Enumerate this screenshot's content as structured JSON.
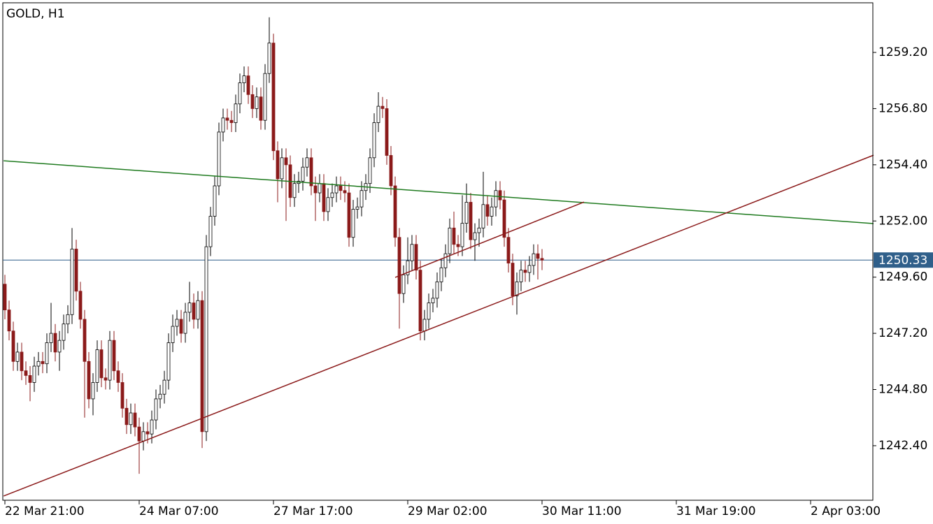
{
  "chart_data": {
    "type": "candlestick",
    "title": "GOLD, H1",
    "open": [
      1249.3,
      1248.2,
      1247.3,
      1246.0,
      1246.4,
      1245.6,
      1245.4,
      1245.1,
      1245.8,
      1246.0,
      1245.9,
      1246.8,
      1247.2,
      1246.4,
      1246.9,
      1247.6,
      1248.0,
      1250.8,
      1249.0,
      1247.8,
      1246.0,
      1244.4,
      1245.1,
      1246.5,
      1245.3,
      1245.2,
      1246.9,
      1245.6,
      1245.1,
      1244.0,
      1243.3,
      1243.8,
      1243.2,
      1242.6,
      1243.0,
      1242.9,
      1243.5,
      1244.4,
      1244.6,
      1245.2,
      1246.8,
      1247.5,
      1247.8,
      1247.2,
      1248.1,
      1248.5,
      1247.8,
      1248.6,
      1243.0,
      1250.9,
      1252.2,
      1253.5,
      1255.8,
      1256.4,
      1256.3,
      1256.2,
      1257.0,
      1257.9,
      1258.2,
      1257.4,
      1256.8,
      1257.3,
      1256.3,
      1258.3,
      1259.6,
      1255.0,
      1253.8,
      1254.7,
      1254.4,
      1253.0,
      1253.6,
      1253.7,
      1254.3,
      1254.7,
      1253.5,
      1253.2,
      1253.6,
      1252.4,
      1253.0,
      1253.2,
      1253.5,
      1253.3,
      1253.2,
      1251.3,
      1252.5,
      1252.6,
      1253.3,
      1253.6,
      1254.7,
      1256.2,
      1256.9,
      1256.8,
      1254.8,
      1253.5,
      1251.3,
      1248.9,
      1249.7,
      1250.3,
      1251.0,
      1249.9,
      1247.3,
      1247.8,
      1248.5,
      1248.7,
      1249.4,
      1250.0,
      1250.6,
      1251.7,
      1251.0,
      1250.9,
      1251.9,
      1252.8,
      1251.2,
      1251.5,
      1251.7,
      1252.7,
      1252.2,
      1252.6,
      1253.3,
      1252.9,
      1251.3,
      1250.2,
      1248.8,
      1249.4,
      1249.9,
      1249.8,
      1250.1,
      1250.6,
      1250.4
    ],
    "high": [
      1249.7,
      1248.6,
      1247.7,
      1246.8,
      1246.8,
      1246.0,
      1245.8,
      1246.2,
      1246.4,
      1246.4,
      1247.2,
      1248.5,
      1247.6,
      1247.3,
      1248.0,
      1248.4,
      1251.7,
      1251.2,
      1249.4,
      1248.2,
      1246.4,
      1245.5,
      1246.9,
      1246.9,
      1245.7,
      1247.3,
      1247.3,
      1246.0,
      1245.5,
      1244.4,
      1244.2,
      1244.2,
      1243.6,
      1243.4,
      1243.4,
      1243.9,
      1244.8,
      1245.0,
      1245.6,
      1247.2,
      1248.0,
      1248.2,
      1248.2,
      1248.5,
      1249.4,
      1248.9,
      1249.0,
      1249.0,
      1251.4,
      1252.6,
      1253.9,
      1256.2,
      1256.8,
      1256.8,
      1256.7,
      1257.4,
      1258.3,
      1258.6,
      1258.6,
      1257.8,
      1257.7,
      1257.7,
      1258.7,
      1260.7,
      1260.0,
      1255.4,
      1255.1,
      1255.1,
      1254.8,
      1254.0,
      1254.1,
      1254.7,
      1255.1,
      1255.1,
      1253.9,
      1254.0,
      1254.0,
      1253.4,
      1253.6,
      1253.9,
      1253.9,
      1253.7,
      1253.6,
      1252.9,
      1253.0,
      1253.7,
      1254.0,
      1255.1,
      1256.6,
      1257.5,
      1257.3,
      1257.2,
      1255.2,
      1253.9,
      1251.7,
      1250.1,
      1251.3,
      1251.4,
      1251.4,
      1250.3,
      1248.2,
      1248.9,
      1249.1,
      1249.8,
      1250.4,
      1251.0,
      1252.1,
      1252.4,
      1251.4,
      1253.1,
      1253.6,
      1253.2,
      1251.9,
      1252.1,
      1254.1,
      1253.1,
      1253.0,
      1253.7,
      1253.7,
      1253.3,
      1251.7,
      1250.6,
      1249.8,
      1250.3,
      1250.3,
      1250.5,
      1251.0,
      1251.0,
      1250.8
    ],
    "low": [
      1247.8,
      1246.9,
      1245.6,
      1245.6,
      1245.2,
      1245.0,
      1244.3,
      1244.7,
      1245.4,
      1245.5,
      1245.5,
      1246.4,
      1246.0,
      1245.6,
      1246.5,
      1247.2,
      1247.6,
      1248.6,
      1247.4,
      1243.6,
      1244.0,
      1243.7,
      1244.7,
      1244.9,
      1244.8,
      1244.8,
      1245.2,
      1244.7,
      1243.6,
      1242.9,
      1242.9,
      1242.8,
      1241.2,
      1242.2,
      1242.5,
      1242.5,
      1243.1,
      1244.0,
      1244.2,
      1244.8,
      1246.4,
      1247.1,
      1246.8,
      1246.8,
      1247.7,
      1247.4,
      1247.4,
      1242.3,
      1242.6,
      1250.5,
      1251.8,
      1253.1,
      1255.4,
      1255.9,
      1255.8,
      1255.8,
      1256.6,
      1257.5,
      1257.0,
      1256.4,
      1256.4,
      1255.9,
      1255.9,
      1257.9,
      1254.6,
      1252.8,
      1253.4,
      1252.0,
      1252.6,
      1252.6,
      1253.2,
      1253.3,
      1253.9,
      1253.1,
      1252.0,
      1252.8,
      1252.0,
      1252.0,
      1252.6,
      1252.8,
      1252.9,
      1252.8,
      1250.9,
      1250.9,
      1252.1,
      1252.2,
      1252.9,
      1253.2,
      1254.3,
      1255.8,
      1256.4,
      1254.4,
      1253.1,
      1250.9,
      1247.4,
      1248.5,
      1249.3,
      1249.9,
      1249.5,
      1246.9,
      1246.9,
      1247.4,
      1248.1,
      1248.3,
      1249.0,
      1249.6,
      1250.2,
      1250.6,
      1250.5,
      1250.5,
      1251.5,
      1250.8,
      1250.3,
      1250.9,
      1251.3,
      1251.8,
      1251.8,
      1252.2,
      1252.5,
      1250.9,
      1249.8,
      1248.4,
      1248.0,
      1249.0,
      1249.4,
      1249.4,
      1249.7,
      1249.5,
      1249.9
    ],
    "close": [
      1248.2,
      1247.3,
      1246.0,
      1246.4,
      1245.6,
      1245.4,
      1245.1,
      1245.8,
      1246.0,
      1245.9,
      1246.8,
      1247.2,
      1246.4,
      1246.9,
      1247.6,
      1248.0,
      1250.8,
      1249.0,
      1247.8,
      1246.0,
      1244.4,
      1245.1,
      1246.5,
      1245.3,
      1245.2,
      1246.9,
      1245.6,
      1245.1,
      1244.0,
      1243.3,
      1243.8,
      1243.2,
      1242.6,
      1243.0,
      1242.9,
      1243.5,
      1244.4,
      1244.6,
      1245.2,
      1246.8,
      1247.5,
      1247.8,
      1247.2,
      1248.1,
      1248.5,
      1247.8,
      1248.6,
      1243.0,
      1250.9,
      1252.2,
      1253.5,
      1255.8,
      1256.4,
      1256.3,
      1256.2,
      1257.0,
      1257.9,
      1258.2,
      1257.4,
      1256.8,
      1257.3,
      1256.3,
      1258.3,
      1259.6,
      1255.0,
      1253.8,
      1254.7,
      1254.4,
      1253.0,
      1253.6,
      1253.7,
      1254.3,
      1254.7,
      1253.5,
      1253.2,
      1253.6,
      1252.4,
      1253.0,
      1253.2,
      1253.5,
      1253.3,
      1253.2,
      1251.3,
      1252.5,
      1252.6,
      1253.3,
      1253.6,
      1254.7,
      1256.2,
      1256.9,
      1256.8,
      1254.8,
      1253.5,
      1251.3,
      1248.9,
      1249.7,
      1250.3,
      1251.0,
      1249.9,
      1247.3,
      1247.8,
      1248.5,
      1248.7,
      1249.4,
      1250.0,
      1250.6,
      1251.7,
      1251.0,
      1250.9,
      1251.9,
      1252.8,
      1251.2,
      1251.5,
      1251.7,
      1252.7,
      1252.2,
      1252.6,
      1253.3,
      1252.9,
      1251.3,
      1250.2,
      1248.8,
      1249.4,
      1249.9,
      1249.8,
      1250.1,
      1250.6,
      1250.4,
      1250.33
    ],
    "bull_color": "#ffffff",
    "bear_color": "#8b1a1a",
    "xlim": [
      0,
      207
    ],
    "xticks": [
      {
        "value": 0,
        "label": "22 Mar 21:00"
      },
      {
        "value": 32,
        "label": "24 Mar 07:00"
      },
      {
        "value": 64,
        "label": "27 Mar 17:00"
      },
      {
        "value": 96,
        "label": "29 Mar 02:00"
      },
      {
        "value": 128,
        "label": "30 Mar 11:00"
      },
      {
        "value": 160,
        "label": "31 Mar 19:00"
      },
      {
        "value": 192,
        "label": "2 Apr 03:00"
      }
    ],
    "ylim": [
      1240.07,
      1261.32
    ],
    "yticks": [
      {
        "value": 1259.2,
        "label": "1259.20"
      },
      {
        "value": 1256.8,
        "label": "1256.80"
      },
      {
        "value": 1254.4,
        "label": "1254.40"
      },
      {
        "value": 1252,
        "label": "1252.00"
      },
      {
        "value": 1249.6,
        "label": "1249.60"
      },
      {
        "value": 1247.2,
        "label": "1247.20"
      },
      {
        "value": 1244.8,
        "label": "1244.80"
      },
      {
        "value": 1242.4,
        "label": "1242.40"
      }
    ],
    "current_price": 1250.33,
    "current_price_color": "#2f5f8a",
    "trendlines": [
      {
        "color": "#1e7a1e",
        "x": [
          -0.3,
          207
        ],
        "y": [
          1254.57,
          1251.89
        ]
      },
      {
        "color": "#8b1a1a",
        "x": [
          -0.3,
          207
        ],
        "y": [
          1240.25,
          1254.81
        ]
      },
      {
        "color": "#8b1a1a",
        "x": [
          93,
          138
        ],
        "y": [
          1249.59,
          1252.81
        ]
      }
    ]
  }
}
